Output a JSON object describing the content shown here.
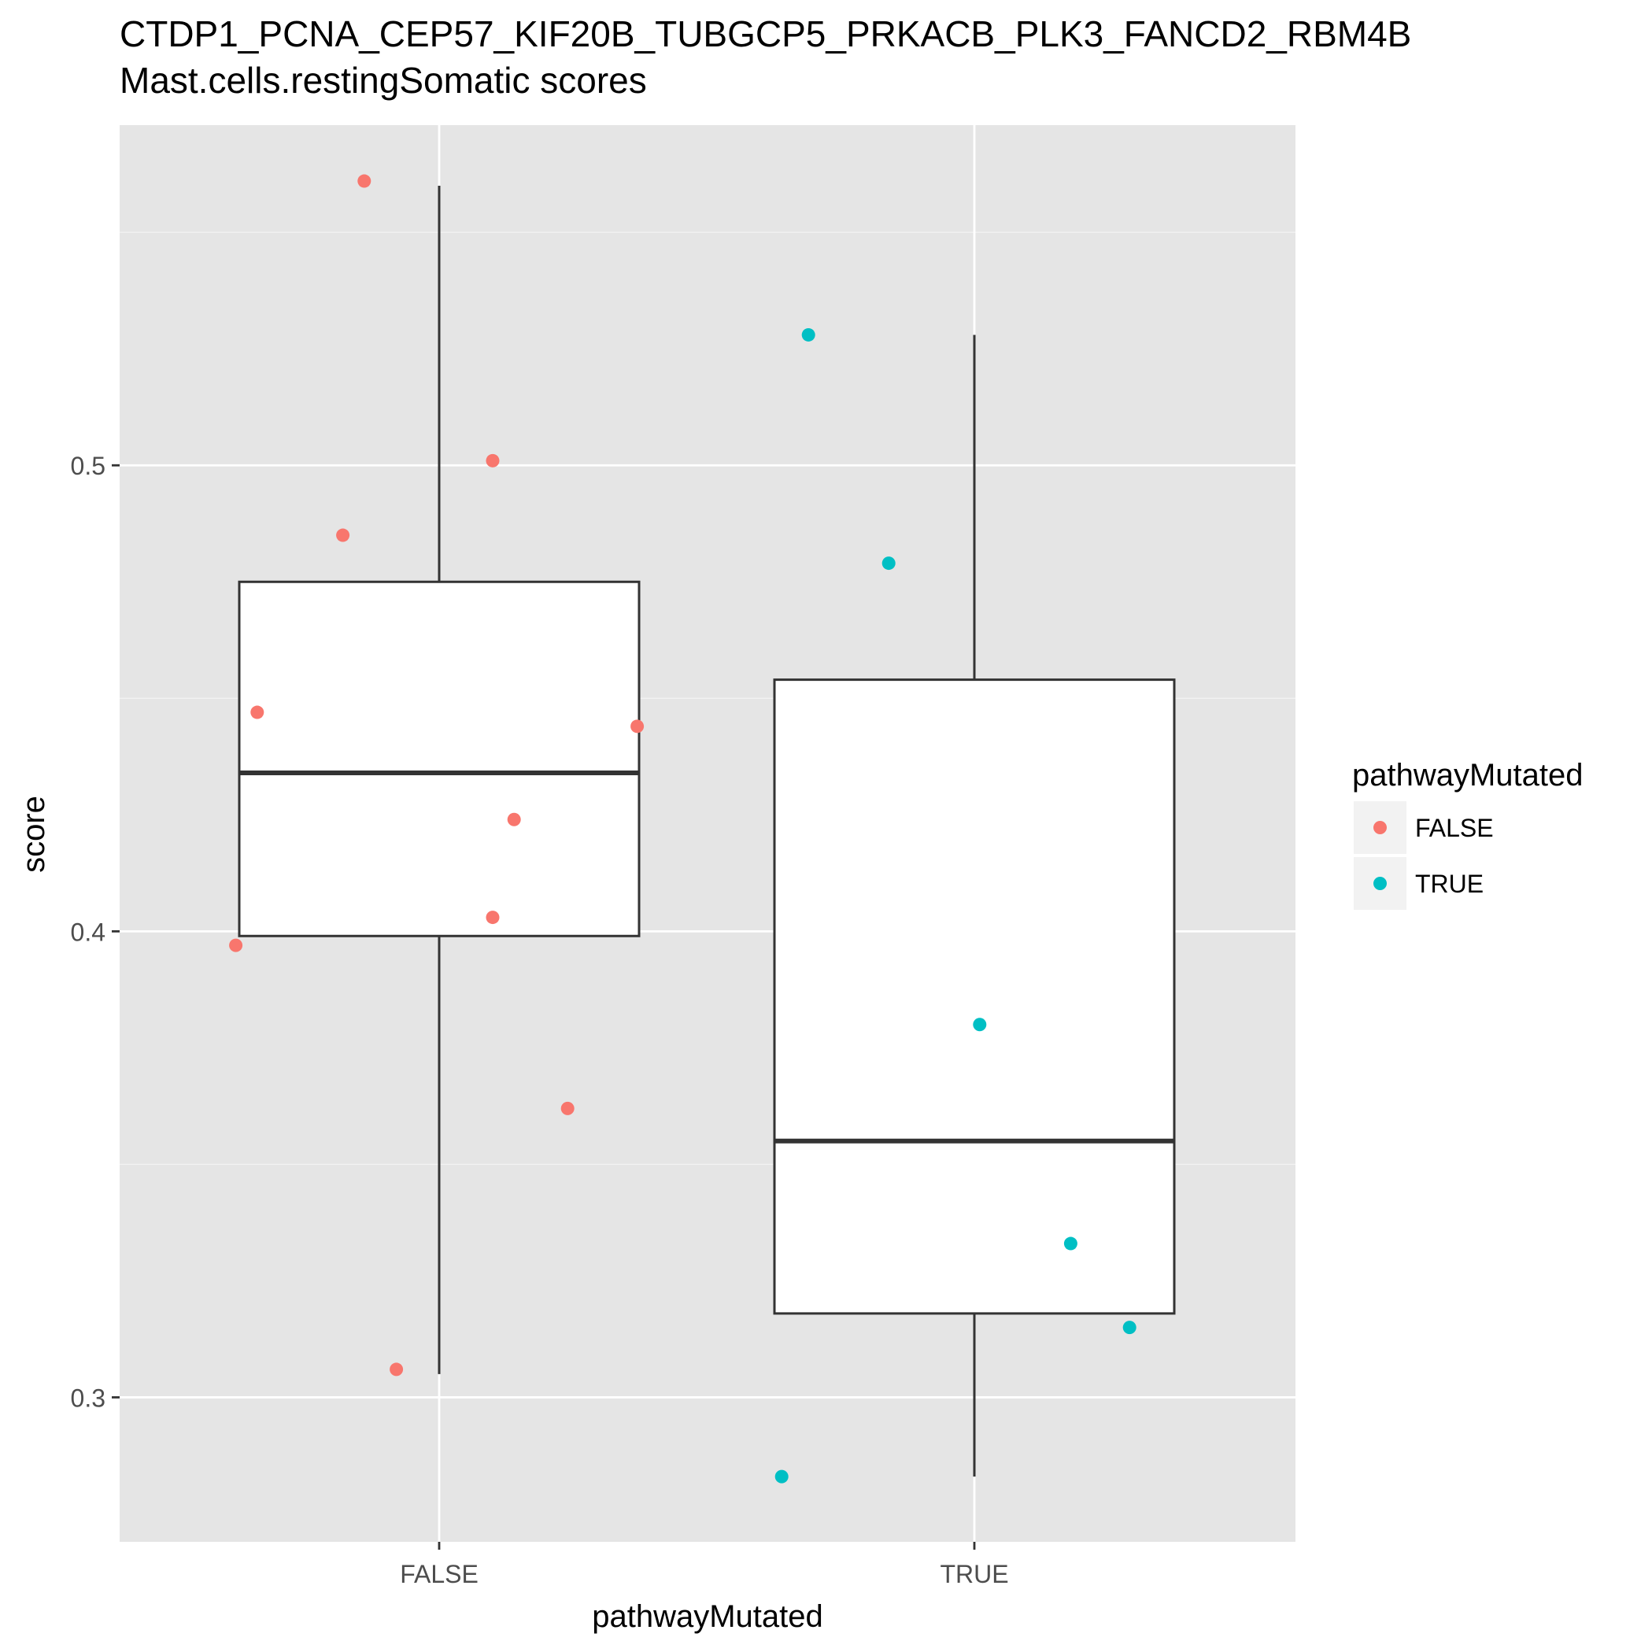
{
  "chart_data": {
    "type": "boxplot",
    "title": "CTDP1_PCNA_CEP57_KIF20B_TUBGCP5_PRKACB_PLK3_FANCD2_RBM4B",
    "subtitle": "Mast.cells.restingSomatic scores",
    "xlabel": "pathwayMutated",
    "ylabel": "score",
    "categories": [
      "FALSE",
      "TRUE"
    ],
    "ylim": [
      0.269,
      0.573
    ],
    "yticks": [
      0.3,
      0.4,
      0.5
    ],
    "ytick_labels": [
      "0.3",
      "0.4",
      "0.5"
    ],
    "grid": true,
    "legend": {
      "title": "pathwayMutated",
      "position": "right",
      "entries": [
        {
          "label": "FALSE",
          "color": "#F8766D"
        },
        {
          "label": "TRUE",
          "color": "#00BFC4"
        }
      ]
    },
    "boxes": [
      {
        "category": "FALSE",
        "whisker_low": 0.305,
        "q1": 0.399,
        "median": 0.434,
        "q3": 0.475,
        "whisker_high": 0.56
      },
      {
        "category": "TRUE",
        "whisker_low": 0.283,
        "q1": 0.318,
        "median": 0.355,
        "q3": 0.454,
        "whisker_high": 0.528
      }
    ],
    "series": [
      {
        "name": "FALSE",
        "color": "#F8766D",
        "points": [
          {
            "x": -0.14,
            "y": 0.561
          },
          {
            "x": -0.18,
            "y": 0.485
          },
          {
            "x": 0.1,
            "y": 0.501
          },
          {
            "x": -0.34,
            "y": 0.447
          },
          {
            "x": 0.37,
            "y": 0.444
          },
          {
            "x": 0.14,
            "y": 0.424
          },
          {
            "x": 0.1,
            "y": 0.403
          },
          {
            "x": -0.38,
            "y": 0.397
          },
          {
            "x": 0.24,
            "y": 0.362
          },
          {
            "x": -0.08,
            "y": 0.306
          }
        ]
      },
      {
        "name": "TRUE",
        "color": "#00BFC4",
        "points": [
          {
            "x": -0.31,
            "y": 0.528
          },
          {
            "x": -0.16,
            "y": 0.479
          },
          {
            "x": 0.01,
            "y": 0.38
          },
          {
            "x": 0.18,
            "y": 0.333
          },
          {
            "x": 0.29,
            "y": 0.315
          },
          {
            "x": -0.36,
            "y": 0.283
          }
        ]
      }
    ]
  }
}
